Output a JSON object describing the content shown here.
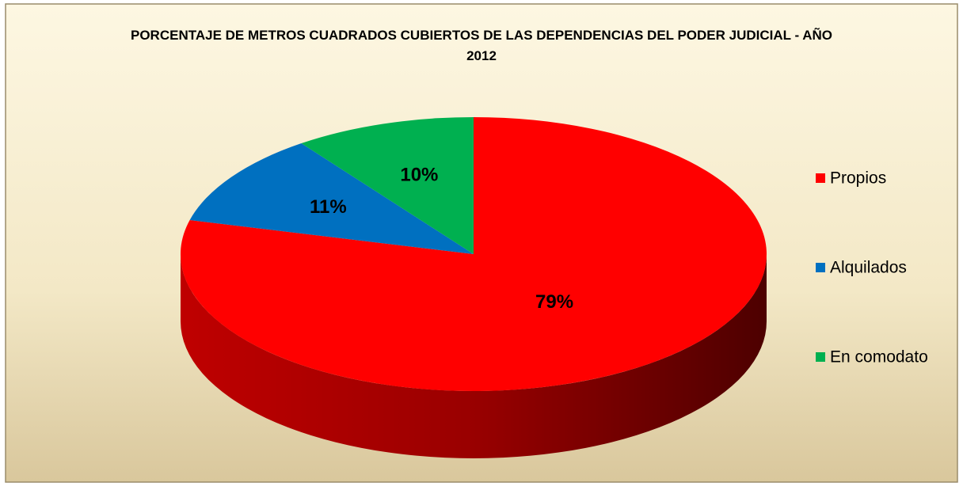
{
  "chart_data": {
    "type": "pie",
    "title": "PORCENTAJE DE METROS CUADRADOS CUBIERTOS DE LAS DEPENDENCIAS DEL PODER JUDICIAL - AÑO 2012",
    "categories": [
      "Propios",
      "Alquilados",
      "En comodato"
    ],
    "values": [
      79,
      11,
      10
    ],
    "value_labels": [
      "79%",
      "11%",
      "10%"
    ],
    "colors": [
      "#ff0000",
      "#0070c0",
      "#00b050"
    ],
    "legend": "right"
  }
}
